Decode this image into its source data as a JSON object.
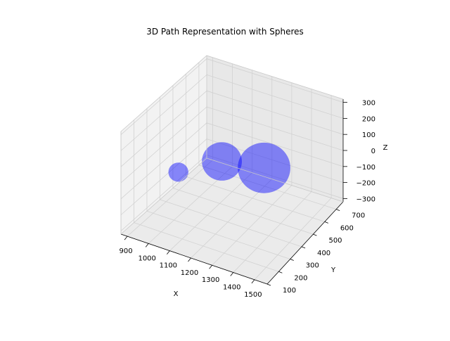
{
  "chart_data": {
    "type": "scatter",
    "projection": "3d",
    "title": "3D Path Representation with Spheres",
    "xlabel": "X",
    "ylabel": "Y",
    "zlabel": "Z",
    "xlim": [
      870,
      1560
    ],
    "ylim": [
      100,
      760
    ],
    "zlim": [
      -320,
      320
    ],
    "xticks": [
      "900",
      "1000",
      "1100",
      "1200",
      "1300",
      "1400",
      "1500"
    ],
    "yticks": [
      "100",
      "200",
      "300",
      "400",
      "500",
      "600",
      "700"
    ],
    "zticks": [
      "300",
      "200",
      "100",
      "0",
      "−100",
      "−200",
      "−300"
    ],
    "grid": true,
    "pane_colors": {
      "floor": "#ebebeb",
      "left_wall": "#f2f2f2",
      "back_wall": "#e8e8e8"
    },
    "series": [
      {
        "color": "#0000ff",
        "opacity": 0.5,
        "spheres": [
          {
            "x": 1300,
            "y": 500,
            "z": 0,
            "r": 250
          },
          {
            "x": 1150,
            "y": 420,
            "z": 30,
            "r": 190
          },
          {
            "x": 1000,
            "y": 330,
            "z": -40,
            "r": 95
          }
        ]
      }
    ]
  }
}
